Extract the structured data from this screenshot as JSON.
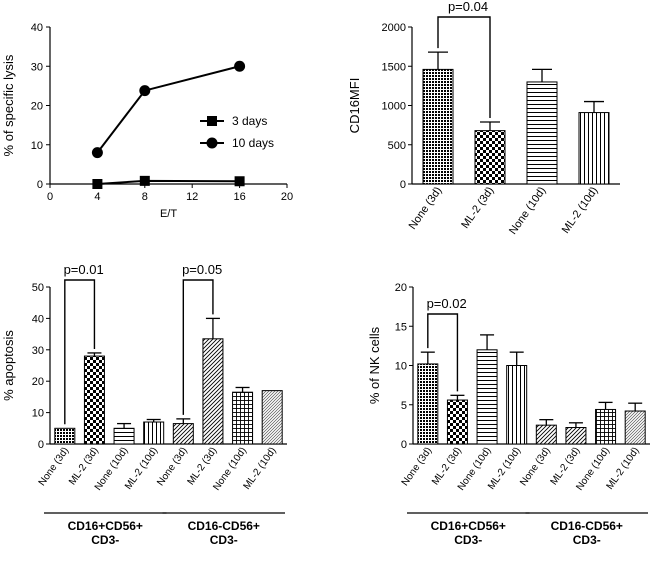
{
  "chart_data": [
    {
      "id": "A",
      "type": "line",
      "title": "",
      "xlabel": "E/T",
      "ylabel": "% of specific lysis",
      "xlim": [
        0,
        20
      ],
      "ylim": [
        0,
        40
      ],
      "xticks": [
        0,
        4,
        8,
        12,
        16,
        20
      ],
      "yticks": [
        0,
        10,
        20,
        30,
        40
      ],
      "series": [
        {
          "name": "3 days",
          "marker": "square",
          "x": [
            4,
            8,
            16
          ],
          "y": [
            0,
            0.8,
            0.7
          ]
        },
        {
          "name": "10 days",
          "marker": "circle",
          "x": [
            4,
            8,
            16
          ],
          "y": [
            8,
            23.8,
            30
          ]
        }
      ],
      "legend": "center-right"
    },
    {
      "id": "B",
      "type": "bar",
      "title": "",
      "xlabel": "",
      "ylabel": "CD16MFI",
      "ylim": [
        0,
        2000
      ],
      "yticks": [
        0,
        500,
        1000,
        1500,
        2000
      ],
      "categories": [
        "None (3d)",
        "ML-2 (3d)",
        "None (10d)",
        "ML-2 (10d)"
      ],
      "values": [
        1460,
        680,
        1300,
        910
      ],
      "errors": [
        220,
        110,
        160,
        140
      ],
      "patterns": [
        "dots",
        "checker",
        "hlines",
        "vlines"
      ],
      "annotations": [
        {
          "text": "p=0.04",
          "from": 0,
          "to": 1
        }
      ]
    },
    {
      "id": "C",
      "type": "bar",
      "title": "",
      "xlabel": "",
      "ylabel": "% apoptosis",
      "ylim": [
        0,
        50
      ],
      "yticks": [
        0,
        10,
        20,
        30,
        40,
        50
      ],
      "categories": [
        "None (3d)",
        "ML-2 (3d)",
        "None (10d)",
        "ML-2 (10d)",
        "None (3d)",
        "ML-2 (3d)",
        "None (10d)",
        "ML-2 (10d)"
      ],
      "values": [
        5,
        28,
        5,
        7,
        6.5,
        33.5,
        16.5,
        17
      ],
      "errors": [
        0,
        1,
        1.5,
        0.8,
        1.5,
        6.5,
        1.5,
        0
      ],
      "patterns": [
        "dots",
        "checker",
        "hlines",
        "vlines",
        "diag",
        "diag",
        "grid",
        "diag2"
      ],
      "annotations": [
        {
          "text": "p=0.01",
          "from": 0,
          "to": 1
        },
        {
          "text": "p=0.05",
          "from": 4,
          "to": 5
        }
      ],
      "groups": [
        {
          "label1": "CD16+CD56+",
          "label2": "CD3-",
          "from": 0,
          "to": 3
        },
        {
          "label1": "CD16-CD56+",
          "label2": "CD3-",
          "from": 4,
          "to": 7
        }
      ]
    },
    {
      "id": "D",
      "type": "bar",
      "title": "",
      "xlabel": "",
      "ylabel": "% of NK cells",
      "ylim": [
        0,
        20
      ],
      "yticks": [
        0,
        5,
        10,
        15,
        20
      ],
      "categories": [
        "None (3d)",
        "ML-2 (3d)",
        "None (10d)",
        "ML-2 (10d)",
        "None (3d)",
        "ML-2 (3d)",
        "None (10d)",
        "ML-2 (10d)"
      ],
      "values": [
        10.2,
        5.6,
        12,
        10,
        2.4,
        2.1,
        4.4,
        4.2
      ],
      "errors": [
        1.5,
        0.6,
        1.9,
        1.7,
        0.7,
        0.6,
        0.9,
        1
      ],
      "patterns": [
        "dots",
        "checker",
        "hlines",
        "vlines",
        "diag",
        "diag",
        "grid",
        "diag2"
      ],
      "annotations": [
        {
          "text": "p=0.02",
          "from": 0,
          "to": 1
        }
      ],
      "groups": [
        {
          "label1": "CD16+CD56+",
          "label2": "CD3-",
          "from": 0,
          "to": 3
        },
        {
          "label1": "CD16-CD56+",
          "label2": "CD3-",
          "from": 4,
          "to": 7
        }
      ]
    }
  ]
}
